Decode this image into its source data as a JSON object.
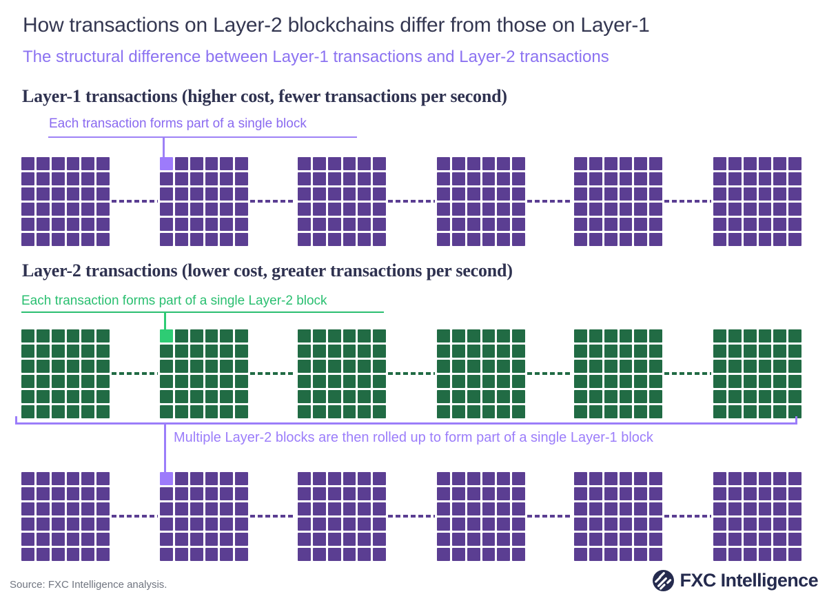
{
  "header": {
    "title": "How transactions on Layer-2 blockchains differ from those on Layer-1",
    "subtitle": "The structural difference between Layer-1 transactions and Layer-2 transactions"
  },
  "sections": {
    "layer1": {
      "heading": "Layer-1 transactions (higher cost, fewer transactions per second)",
      "annotation": "Each transaction forms part of a single block"
    },
    "layer2": {
      "heading": "Layer-2 transactions (lower cost, greater transactions per second)",
      "annotation": "Each transaction forms part of a single Layer-2 block",
      "rollup_annotation": "Multiple Layer-2 blocks are then rolled up to form part of a single Layer-1 block"
    }
  },
  "diagram": {
    "blocks_per_chain": 6,
    "transactions_per_block_grid": "6x6",
    "rows": [
      {
        "name": "layer1-chain",
        "block_color": "#5b3e92",
        "highlight_color": "#9d7bfb",
        "highlight_block_index": 1,
        "highlight_cell_index": 0
      },
      {
        "name": "layer2-chain",
        "block_color": "#216b44",
        "highlight_color": "#2ecc74",
        "highlight_block_index": 1,
        "highlight_cell_index": 0
      },
      {
        "name": "layer1-rollup-chain",
        "block_color": "#5b3e92",
        "highlight_color": "#9d7bfb",
        "highlight_block_index": 1,
        "highlight_cell_index": 0
      }
    ]
  },
  "colors": {
    "title_text": "#343751",
    "subtitle_text": "#8b72f1",
    "heading_text": "#2f3250",
    "purple_block": "#5b3e92",
    "purple_highlight": "#9d7bfb",
    "green_block": "#216b44",
    "green_highlight": "#2ecc74",
    "green_annotation": "#2abf70",
    "purple_annotation": "#8a6af0",
    "rollup_annotation": "#9b7dfa",
    "source_text": "#707580",
    "logo_navy": "#252b4e"
  },
  "footer": {
    "source": "Source: FXC Intelligence analysis.",
    "logo_text": "FXC Intelligence"
  }
}
